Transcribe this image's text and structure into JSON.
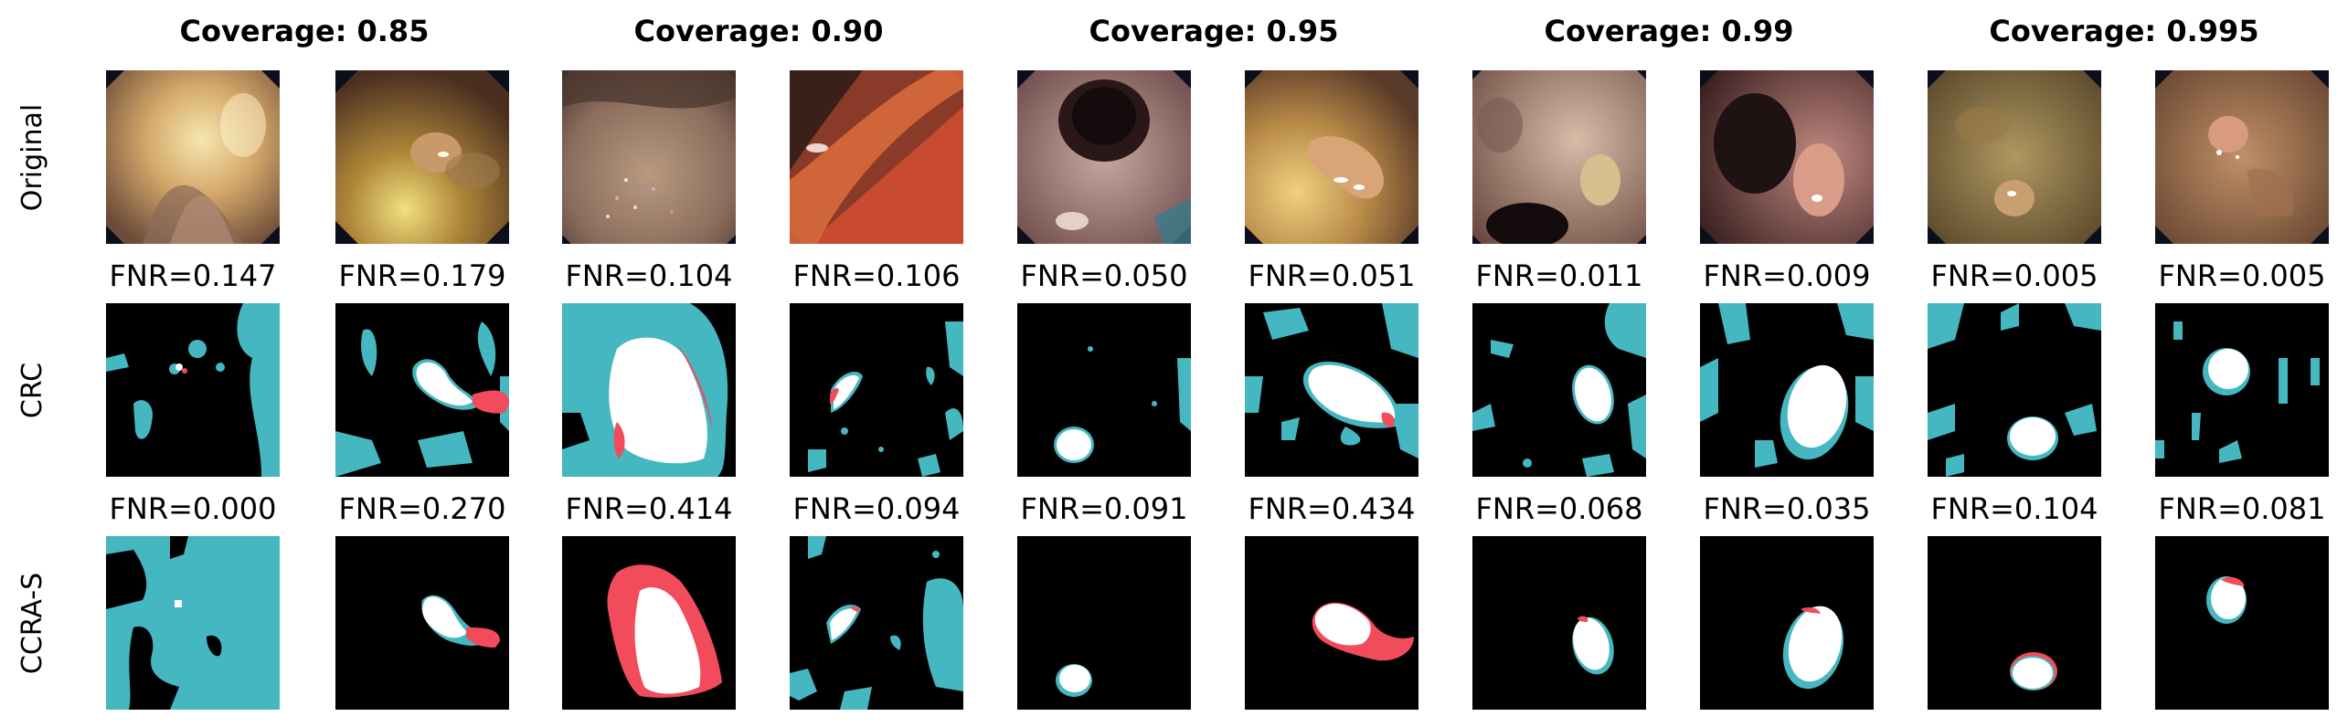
{
  "columns": [
    {
      "coverage": "Coverage: 0.85"
    },
    {
      "coverage": "Coverage: 0.90"
    },
    {
      "coverage": "Coverage: 0.95"
    },
    {
      "coverage": "Coverage: 0.99"
    },
    {
      "coverage": "Coverage: 0.995"
    }
  ],
  "rows": {
    "original": "Original",
    "crc": "CRC",
    "ccra": "CCRA-S"
  },
  "crc_fnr": [
    "FNR=0.147",
    "FNR=0.179",
    "FNR=0.104",
    "FNR=0.106",
    "FNR=0.050",
    "FNR=0.051",
    "FNR=0.011",
    "FNR=0.009",
    "FNR=0.005",
    "FNR=0.005"
  ],
  "ccra_fnr": [
    "FNR=0.000",
    "FNR=0.270",
    "FNR=0.414",
    "FNR=0.094",
    "FNR=0.091",
    "FNR=0.434",
    "FNR=0.068",
    "FNR=0.035",
    "FNR=0.104",
    "FNR=0.081"
  ],
  "colors": {
    "mask_background": "#000000",
    "overlap_white": "#ffffff",
    "prediction_teal": "#45b7c0",
    "missed_red": "#f24b5b",
    "photo_frame": "#0b0f1c"
  }
}
